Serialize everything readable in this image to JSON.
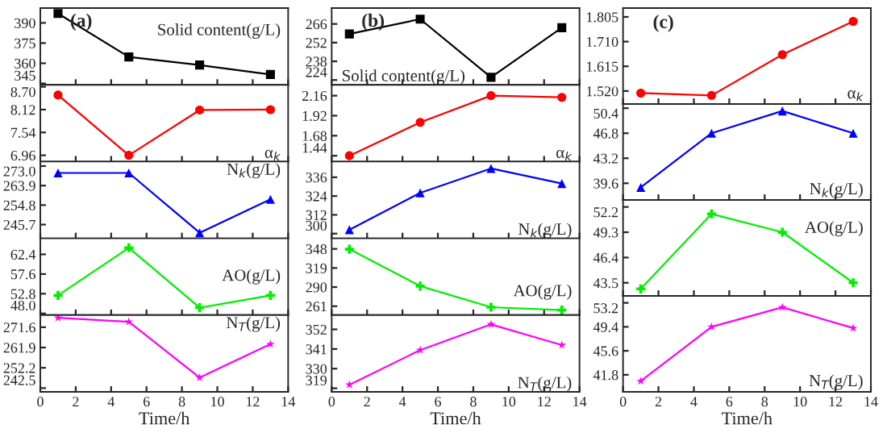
{
  "chart_data": [
    {
      "type": "line",
      "title": "(a)",
      "annotations": [
        "Solid content(g/L)"
      ],
      "x": [
        1,
        5,
        9,
        13
      ],
      "series": [
        {
          "color": "#000000",
          "values": [
            397,
            364.7,
            358.7,
            351.7
          ]
        }
      ],
      "marker": "square",
      "xlim": [
        0,
        14
      ],
      "xticks": [
        0,
        2,
        4,
        6,
        8,
        10,
        12,
        14
      ],
      "ylim": [
        344,
        401
      ],
      "yticks": [
        345,
        360,
        375,
        390
      ],
      "tick_labels": "y",
      "grid": false
    },
    {
      "type": "line",
      "annotations": [
        "α$_{k}$"
      ],
      "x": [
        1,
        5,
        9,
        13
      ],
      "series": [
        {
          "color": "#ff0000",
          "values": [
            8.49,
            6.96,
            8.11,
            8.12
          ]
        }
      ],
      "marker": "circle",
      "xlim": [
        0,
        14
      ],
      "xticks": [
        0,
        2,
        4,
        6,
        8,
        10,
        12,
        14
      ],
      "ylim": [
        6.8,
        8.75
      ],
      "yticks": [
        {
          "value": 6.96,
          "label": "6.96"
        },
        {
          "value": 7.54,
          "label": "7.54"
        },
        {
          "value": 8.12,
          "label": "8.12"
        },
        {
          "value": 8.7,
          "label": "8.70"
        }
      ],
      "tick_labels": "y",
      "grid": false
    },
    {
      "type": "line",
      "annotations": [
        "N$_{k}$(g/L)"
      ],
      "x": [
        1,
        5,
        9,
        13
      ],
      "series": [
        {
          "color": "#0000ff",
          "values": [
            269.8,
            269.8,
            241.9,
            257.5
          ]
        }
      ],
      "marker": "triangle",
      "xlim": [
        0,
        14
      ],
      "xticks": [
        0,
        2,
        4,
        6,
        8,
        10,
        12,
        14
      ],
      "ylim": [
        239.3,
        275.1
      ],
      "yticks": [
        245.7,
        254.8,
        263.9,
        {
          "value": 273,
          "label": "273.0"
        }
      ],
      "tick_labels": "y",
      "grid": false
    },
    {
      "type": "line",
      "annotations": [
        "AO(g/L)"
      ],
      "x": [
        1,
        5,
        9,
        13
      ],
      "series": [
        {
          "color": "#00ee00",
          "values": [
            52.4,
            64.0,
            49.4,
            52.4
          ]
        }
      ],
      "marker": "cross",
      "xlim": [
        0,
        14
      ],
      "xticks": [
        0,
        2,
        4,
        6,
        8,
        10,
        12,
        14
      ],
      "ylim": [
        47.6,
        66.3
      ],
      "yticks": [
        {
          "value": 48,
          "label": "48.0"
        },
        52.8,
        57.6,
        62.4
      ],
      "tick_labels": "y",
      "grid": false
    },
    {
      "type": "line",
      "annotations": [
        "N$_{T}$(g/L)"
      ],
      "xlabel": "Time/h",
      "x": [
        1,
        5,
        9,
        13
      ],
      "series": [
        {
          "color": "#ff00ff",
          "values": [
            276.1,
            274.2,
            247.5,
            263.5
          ]
        }
      ],
      "marker": "star",
      "xlim": [
        0,
        14
      ],
      "xticks": [
        0,
        2,
        4,
        6,
        8,
        10,
        12,
        14
      ],
      "ylim": [
        240.7,
        277.4
      ],
      "yticks": [
        242.5,
        252.2,
        261.9,
        271.6
      ],
      "grid": false
    },
    {
      "type": "line",
      "title": "(b)",
      "annotations": [
        "Solid content(g/L)"
      ],
      "x": [
        1,
        5,
        9,
        13
      ],
      "series": [
        {
          "color": "#000000",
          "values": [
            258.5,
            269.6,
            226,
            263.2
          ]
        }
      ],
      "marker": "square",
      "xlim": [
        0,
        14
      ],
      "xticks": [
        0,
        2,
        4,
        6,
        8,
        10,
        12,
        14
      ],
      "ylim": [
        220.4,
        277.9
      ],
      "yticks": [
        224,
        238,
        252,
        266
      ],
      "tick_labels": "y",
      "grid": false
    },
    {
      "type": "line",
      "annotations": [
        "α$_{k}$"
      ],
      "x": [
        1,
        5,
        9,
        13
      ],
      "series": [
        {
          "color": "#ff0000",
          "values": [
            1.44,
            1.84,
            2.16,
            2.14
          ]
        }
      ],
      "marker": "circle",
      "xlim": [
        0,
        14
      ],
      "xticks": [
        0,
        2,
        4,
        6,
        8,
        10,
        12,
        14
      ],
      "ylim": [
        1.37,
        2.29
      ],
      "yticks": [
        1.44,
        1.68,
        1.92,
        2.16
      ],
      "tick_labels": "y",
      "grid": false
    },
    {
      "type": "line",
      "annotations": [
        "N$_{k}$(g/L)"
      ],
      "x": [
        1,
        5,
        9,
        13
      ],
      "series": [
        {
          "color": "#0000ff",
          "values": [
            302.5,
            326,
            341.6,
            332
          ]
        }
      ],
      "marker": "triangle",
      "xlim": [
        0,
        14
      ],
      "xticks": [
        0,
        2,
        4,
        6,
        8,
        10,
        12,
        14
      ],
      "ylim": [
        297,
        346
      ],
      "yticks": [
        300,
        312,
        324,
        336
      ],
      "tick_labels": "y",
      "grid": false
    },
    {
      "type": "line",
      "annotations": [
        "AO(g/L)"
      ],
      "x": [
        1,
        5,
        9,
        13
      ],
      "series": [
        {
          "color": "#00ee00",
          "values": [
            347.5,
            291.5,
            259.5,
            255
          ]
        }
      ],
      "marker": "cross",
      "xlim": [
        0,
        14
      ],
      "xticks": [
        0,
        2,
        4,
        6,
        8,
        10,
        12,
        14
      ],
      "ylim": [
        247.5,
        364
      ],
      "yticks": [
        261,
        290,
        319,
        348
      ],
      "tick_labels": "y",
      "grid": false
    },
    {
      "type": "line",
      "annotations": [
        "N$_{T}$(g/L)"
      ],
      "xlabel": "Time/h",
      "x": [
        1,
        5,
        9,
        13
      ],
      "series": [
        {
          "color": "#ff00ff",
          "values": [
            321,
            340.4,
            354.8,
            343.2
          ]
        }
      ],
      "marker": "star",
      "xlim": [
        0,
        14
      ],
      "xticks": [
        0,
        2,
        4,
        6,
        8,
        10,
        12,
        14
      ],
      "ylim": [
        317,
        360
      ],
      "yticks": [
        319,
        330,
        341,
        352
      ],
      "grid": false
    },
    {
      "type": "line",
      "title": "(c)",
      "annotations": [
        "α$_{k}$"
      ],
      "x": [
        1,
        5,
        9,
        13
      ],
      "series": [
        {
          "color": "#ff0000",
          "values": [
            1.512,
            1.503,
            1.66,
            1.788
          ]
        }
      ],
      "marker": "circle",
      "xlim": [
        0,
        14
      ],
      "xticks": [
        0,
        2,
        4,
        6,
        8,
        10,
        12,
        14
      ],
      "ylim": [
        1.47,
        1.839
      ],
      "yticks": [
        {
          "value": 1.52,
          "label": "1.520"
        },
        1.615,
        {
          "value": 1.71,
          "label": "1.710"
        },
        1.805
      ],
      "tick_labels": "y",
      "grid": false
    },
    {
      "type": "line",
      "annotations": [
        "N$_{k}$(g/L)"
      ],
      "x": [
        1,
        5,
        9,
        13
      ],
      "series": [
        {
          "color": "#0000ff",
          "values": [
            39.0,
            46.8,
            50.0,
            46.8
          ]
        }
      ],
      "marker": "triangle",
      "xlim": [
        0,
        14
      ],
      "xticks": [
        0,
        2,
        4,
        6,
        8,
        10,
        12,
        14
      ],
      "ylim": [
        37.2,
        51.0
      ],
      "yticks": [
        39.6,
        43.2,
        46.8,
        50.4
      ],
      "tick_labels": "y",
      "grid": false
    },
    {
      "type": "line",
      "annotations": [
        "AO(g/L)"
      ],
      "x": [
        1,
        5,
        9,
        13
      ],
      "series": [
        {
          "color": "#00ee00",
          "values": [
            42.8,
            51.4,
            49.3,
            43.5
          ]
        }
      ],
      "marker": "cross",
      "xlim": [
        0,
        14
      ],
      "xticks": [
        0,
        2,
        4,
        6,
        8,
        10,
        12,
        14
      ],
      "ylim": [
        42.0,
        53.0
      ],
      "yticks": [
        43.5,
        46.4,
        49.3,
        52.2
      ],
      "tick_labels": "y",
      "grid": false
    },
    {
      "type": "line",
      "annotations": [
        "N$_{T}$(g/L)"
      ],
      "xlabel": "Time/h",
      "x": [
        1,
        5,
        9,
        13
      ],
      "series": [
        {
          "color": "#ff00ff",
          "values": [
            40.8,
            49.4,
            52.5,
            49.2
          ]
        }
      ],
      "marker": "star",
      "xlim": [
        0,
        14
      ],
      "xticks": [
        0,
        2,
        4,
        6,
        8,
        10,
        12,
        14
      ],
      "ylim": [
        39.1,
        54.3
      ],
      "yticks": [
        41.8,
        45.6,
        49.4,
        53.2
      ],
      "grid": false
    }
  ]
}
